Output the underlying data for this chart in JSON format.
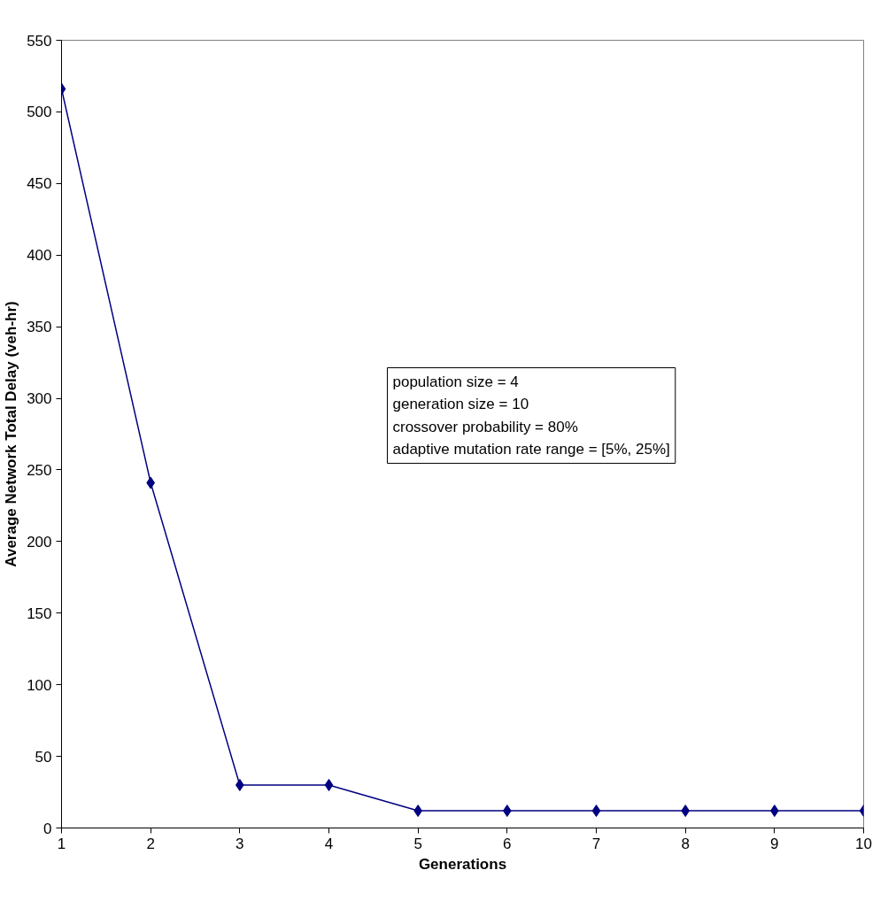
{
  "chart_data": {
    "type": "line",
    "xlabel": "Generations",
    "ylabel": "Average Network Total Delay (veh-hr)",
    "x": [
      1,
      2,
      3,
      4,
      5,
      6,
      7,
      8,
      9,
      10
    ],
    "series": [
      {
        "color": "#000080",
        "values": [
          516,
          241,
          30,
          30,
          12,
          12,
          12,
          12,
          12,
          12
        ]
      }
    ],
    "xlim": [
      1,
      10
    ],
    "xticks": [
      1,
      2,
      3,
      4,
      5,
      6,
      7,
      8,
      9,
      10
    ],
    "ylim": [
      0,
      550
    ],
    "yticks": [
      0,
      50,
      100,
      150,
      200,
      250,
      300,
      350,
      400,
      450,
      500,
      550
    ],
    "grid": false,
    "marker": "diamond",
    "line_style": "solid",
    "annotations": [
      "population size = 4\ngeneration size = 10\ncrossover probability = 80%\nadaptive mutation rate range = [5%, 25%]"
    ]
  }
}
